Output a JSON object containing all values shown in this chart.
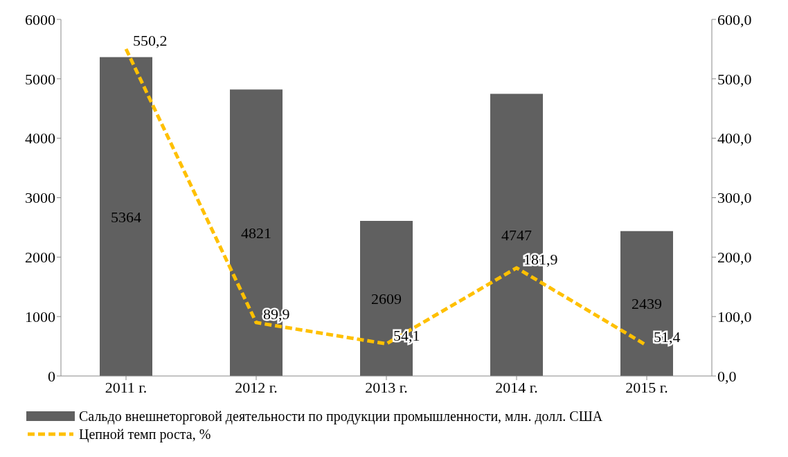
{
  "chart_data": {
    "type": "bar",
    "categories": [
      "2011 г.",
      "2012 г.",
      "2013 г.",
      "2014 г.",
      "2015 г."
    ],
    "series": [
      {
        "name": "Сальдо внешнеторговой деятельности по продукции промышленности, млн. долл. США",
        "color": "#606060",
        "values": [
          5364,
          4821,
          2609,
          4747,
          2439
        ],
        "data_labels": true
      },
      {
        "name": "Цепной темп роста, %",
        "type": "line",
        "axis": "y2",
        "color": "#ffc000",
        "line_style": "dashed",
        "marker": "none",
        "values": [
          550.2,
          89.9,
          54.1,
          181.9,
          51.4
        ],
        "value_labels": [
          "550,2",
          "89,9",
          "54,1",
          "181,9",
          "51,4"
        ]
      }
    ],
    "ylim": [
      0,
      6000
    ],
    "yticks": [
      0,
      1000,
      2000,
      3000,
      4000,
      5000,
      6000
    ],
    "y2lim": [
      0,
      600
    ],
    "y2ticks": [
      {
        "value": 0,
        "label": "0,0"
      },
      {
        "value": 100,
        "label": "100,0"
      },
      {
        "value": 200,
        "label": "200,0"
      },
      {
        "value": 300,
        "label": "300,0"
      },
      {
        "value": 400,
        "label": "400,0"
      },
      {
        "value": 500,
        "label": "500,0"
      },
      {
        "value": 600,
        "label": "600,0"
      }
    ],
    "grid": false,
    "legend": "bottom"
  }
}
